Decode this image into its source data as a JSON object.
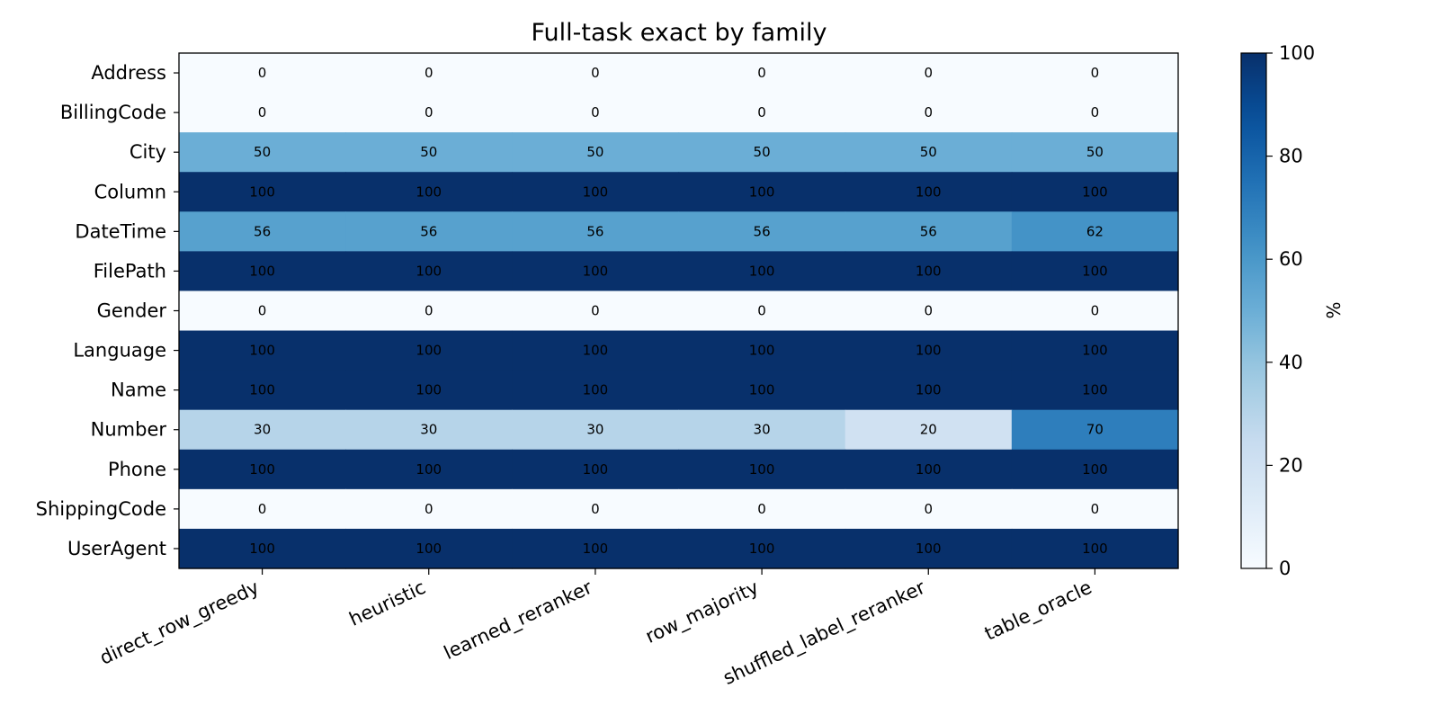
{
  "chart_data": {
    "type": "heatmap",
    "title": "Full-task exact by family",
    "rows": [
      "Address",
      "BillingCode",
      "City",
      "Column",
      "DateTime",
      "FilePath",
      "Gender",
      "Language",
      "Name",
      "Number",
      "Phone",
      "ShippingCode",
      "UserAgent"
    ],
    "columns": [
      "direct_row_greedy",
      "heuristic",
      "learned_reranker",
      "row_majority",
      "shuffled_label_reranker",
      "table_oracle"
    ],
    "values": [
      [
        0,
        0,
        0,
        0,
        0,
        0
      ],
      [
        0,
        0,
        0,
        0,
        0,
        0
      ],
      [
        50,
        50,
        50,
        50,
        50,
        50
      ],
      [
        100,
        100,
        100,
        100,
        100,
        100
      ],
      [
        56,
        56,
        56,
        56,
        56,
        62
      ],
      [
        100,
        100,
        100,
        100,
        100,
        100
      ],
      [
        0,
        0,
        0,
        0,
        0,
        0
      ],
      [
        100,
        100,
        100,
        100,
        100,
        100
      ],
      [
        100,
        100,
        100,
        100,
        100,
        100
      ],
      [
        30,
        30,
        30,
        30,
        20,
        70
      ],
      [
        100,
        100,
        100,
        100,
        100,
        100
      ],
      [
        0,
        0,
        0,
        0,
        0,
        0
      ],
      [
        100,
        100,
        100,
        100,
        100,
        100
      ]
    ],
    "colorbar": {
      "label": "%",
      "range": [
        0,
        100
      ],
      "ticks": [
        0,
        20,
        40,
        60,
        80,
        100
      ],
      "colormap": "Blues"
    },
    "cell_labels": true
  }
}
